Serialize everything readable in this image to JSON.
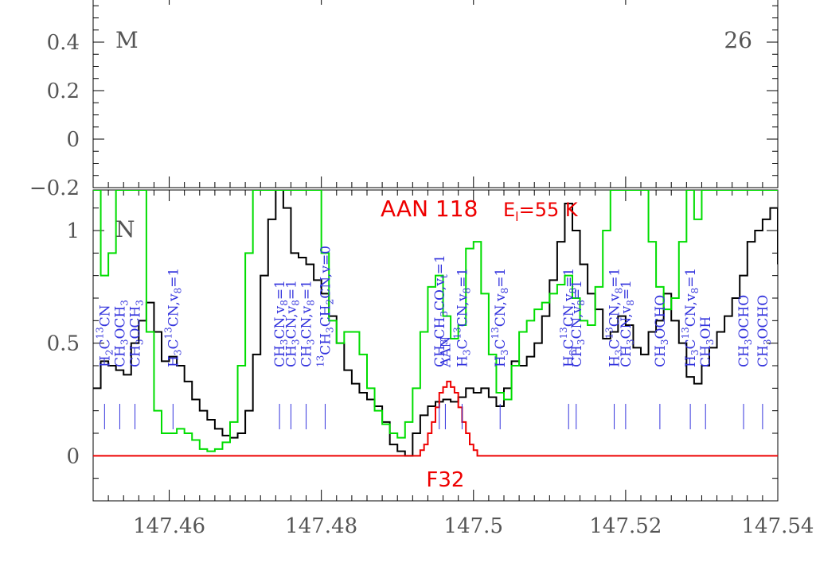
{
  "chart_data": [
    {
      "type": "line",
      "panel": "top",
      "label_left": "M",
      "label_right": "26",
      "ylim": [
        -0.2,
        0.6
      ],
      "y_ticks": [
        -0.2,
        0,
        0.2,
        0.4
      ],
      "y_tick_labels": [
        "−0.2",
        "0",
        "0.2",
        "0.4"
      ],
      "xlim": [
        147.45,
        147.54
      ],
      "series": []
    },
    {
      "type": "line",
      "panel": "bottom",
      "label_left": "N",
      "xlim": [
        147.45,
        147.54
      ],
      "ylim": [
        -0.2,
        1.18
      ],
      "x_ticks": [
        147.46,
        147.48,
        147.5,
        147.52,
        147.54
      ],
      "x_tick_labels": [
        "147.46",
        "147.48",
        "147.5",
        "147.52",
        "147.54"
      ],
      "y_ticks": [
        0,
        0.5,
        1
      ],
      "y_tick_labels": [
        "0",
        "0.5",
        "1"
      ],
      "colors": {
        "observed": "#000000",
        "full_model": "#00dd00",
        "species_model": "#ee0000",
        "labels": "#3333dd"
      },
      "annotation_title": "AAN  118",
      "annotation_energy": "E",
      "annotation_energy_sub": "l",
      "annotation_energy_value": "=55 K",
      "annotation_bottom": "F32",
      "series": [
        {
          "role": "observed",
          "x": [
            147.45,
            147.451,
            147.452,
            147.453,
            147.454,
            147.455,
            147.456,
            147.457,
            147.458,
            147.459,
            147.46,
            147.461,
            147.462,
            147.463,
            147.464,
            147.465,
            147.466,
            147.467,
            147.468,
            147.469,
            147.47,
            147.471,
            147.472,
            147.473,
            147.474,
            147.475,
            147.476,
            147.477,
            147.478,
            147.479,
            147.48,
            147.481,
            147.482,
            147.483,
            147.484,
            147.485,
            147.486,
            147.487,
            147.488,
            147.489,
            147.49,
            147.491,
            147.492,
            147.493,
            147.494,
            147.495,
            147.496,
            147.497,
            147.498,
            147.499,
            147.5,
            147.501,
            147.502,
            147.503,
            147.504,
            147.505,
            147.506,
            147.507,
            147.508,
            147.509,
            147.51,
            147.511,
            147.512,
            147.513,
            147.514,
            147.515,
            147.516,
            147.517,
            147.518,
            147.519,
            147.52,
            147.521,
            147.522,
            147.523,
            147.524,
            147.525,
            147.526,
            147.527,
            147.528,
            147.529,
            147.53,
            147.531,
            147.532,
            147.533,
            147.534,
            147.535,
            147.536,
            147.537,
            147.538,
            147.539,
            147.54
          ],
          "y": [
            0.3,
            0.42,
            0.4,
            0.38,
            0.36,
            0.5,
            0.6,
            0.68,
            0.55,
            0.42,
            0.44,
            0.4,
            0.33,
            0.25,
            0.2,
            0.16,
            0.12,
            0.09,
            0.08,
            0.1,
            0.2,
            0.45,
            0.8,
            1.05,
            1.22,
            1.1,
            0.9,
            0.88,
            0.85,
            0.78,
            0.72,
            0.62,
            0.5,
            0.38,
            0.32,
            0.28,
            0.25,
            0.22,
            0.15,
            0.05,
            0.02,
            0.0,
            0.1,
            0.18,
            0.22,
            0.24,
            0.25,
            0.24,
            0.26,
            0.3,
            0.28,
            0.3,
            0.26,
            0.22,
            0.3,
            0.42,
            0.4,
            0.44,
            0.5,
            0.62,
            0.78,
            0.95,
            1.12,
            1.0,
            0.85,
            0.72,
            0.65,
            0.52,
            0.55,
            0.62,
            0.58,
            0.48,
            0.45,
            0.55,
            0.6,
            0.72,
            0.6,
            0.5,
            0.35,
            0.32,
            0.4,
            0.48,
            0.55,
            0.62,
            0.7,
            0.8,
            0.95,
            1.0,
            1.05,
            1.1,
            0.85
          ]
        },
        {
          "role": "full_model",
          "x": [
            147.45,
            147.451,
            147.452,
            147.453,
            147.454,
            147.455,
            147.456,
            147.457,
            147.458,
            147.459,
            147.46,
            147.461,
            147.462,
            147.463,
            147.464,
            147.465,
            147.466,
            147.467,
            147.468,
            147.469,
            147.47,
            147.471,
            147.472,
            147.473,
            147.474,
            147.475,
            147.476,
            147.477,
            147.478,
            147.479,
            147.48,
            147.481,
            147.482,
            147.483,
            147.484,
            147.485,
            147.486,
            147.487,
            147.488,
            147.489,
            147.49,
            147.491,
            147.492,
            147.493,
            147.494,
            147.495,
            147.496,
            147.497,
            147.498,
            147.499,
            147.5,
            147.501,
            147.502,
            147.503,
            147.504,
            147.505,
            147.506,
            147.507,
            147.508,
            147.509,
            147.51,
            147.511,
            147.512,
            147.513,
            147.514,
            147.515,
            147.516,
            147.517,
            147.518,
            147.519,
            147.52,
            147.521,
            147.522,
            147.523,
            147.524,
            147.525,
            147.526,
            147.527,
            147.528,
            147.529,
            147.53,
            147.531,
            147.532,
            147.533,
            147.534,
            147.535,
            147.536,
            147.537,
            147.538,
            147.539,
            147.54
          ],
          "y": [
            1.18,
            0.8,
            0.9,
            1.18,
            1.18,
            1.18,
            1.18,
            0.55,
            0.2,
            0.1,
            0.1,
            0.12,
            0.1,
            0.07,
            0.03,
            0.02,
            0.03,
            0.06,
            0.15,
            0.4,
            0.9,
            1.18,
            1.18,
            1.18,
            1.18,
            1.18,
            1.18,
            1.18,
            1.18,
            1.18,
            0.9,
            0.6,
            0.5,
            0.55,
            0.55,
            0.45,
            0.3,
            0.2,
            0.14,
            0.1,
            0.08,
            0.15,
            0.3,
            0.55,
            0.75,
            0.8,
            0.62,
            0.52,
            0.58,
            0.92,
            0.95,
            0.72,
            0.45,
            0.28,
            0.25,
            0.4,
            0.55,
            0.6,
            0.65,
            0.68,
            0.72,
            0.76,
            0.8,
            0.7,
            0.6,
            0.58,
            0.75,
            1.0,
            1.18,
            1.18,
            1.18,
            1.18,
            1.18,
            0.95,
            0.75,
            0.65,
            0.7,
            0.95,
            1.18,
            1.05,
            1.18,
            1.18,
            1.18,
            1.18,
            1.18,
            1.18,
            1.18,
            1.18,
            1.18,
            1.18,
            1.18
          ]
        },
        {
          "role": "species_model",
          "name": "AAN",
          "x": [
            147.45,
            147.4925,
            147.4935,
            147.4945,
            147.4955,
            147.4965,
            147.4975,
            147.4985,
            147.4995,
            147.5005,
            147.54
          ],
          "y": [
            0.0,
            0.0,
            0.05,
            0.15,
            0.28,
            0.33,
            0.28,
            0.15,
            0.05,
            0.0,
            0.0
          ]
        }
      ],
      "line_labels": [
        {
          "x": 147.4515,
          "text": "H",
          "sub": "2",
          "rest": "C",
          "sup": "13",
          "tail": "CN"
        },
        {
          "x": 147.4535,
          "text": "CH",
          "sub": "3",
          "rest": "OCH",
          "sub2": "3"
        },
        {
          "x": 147.4555,
          "text": "CH",
          "sub": "3",
          "rest": "OCH",
          "sub2": "3"
        },
        {
          "x": 147.4605,
          "text": "H",
          "sub": "3",
          "rest": "C",
          "sup": "13",
          "tail": "CN,v",
          "sub2": "8",
          "tail2": "=1"
        },
        {
          "x": 147.4745,
          "text": "CH",
          "sub": "3",
          "rest": "CN,v",
          "sub2": "8",
          "tail2": "=1"
        },
        {
          "x": 147.476,
          "text": "CH",
          "sub": "3",
          "rest": "CN,v",
          "sub2": "8",
          "tail2": "=1"
        },
        {
          "x": 147.478,
          "text": "CH",
          "sub": "3",
          "rest": "CN,v",
          "sub2": "8",
          "tail2": "=1"
        },
        {
          "x": 147.4805,
          "sup": "13",
          "text": "CH",
          "sub": "3",
          "rest": "CH",
          "sub2": "2",
          "tail2": "CN,v=0"
        },
        {
          "x": 147.4955,
          "text": "CH",
          "sub": "3",
          "rest": "CH",
          "sub2": "3",
          "tail2": "CO,v",
          "sub3": "t",
          "tail3": "=1"
        },
        {
          "x": 147.4963,
          "text": "AAN"
        },
        {
          "x": 147.4985,
          "text": "H",
          "sub": "3",
          "rest": "C",
          "sup": "13",
          "tail": "CN,v",
          "sub2": "8",
          "tail2": "=1"
        },
        {
          "x": 147.5035,
          "text": "H",
          "sub": "3",
          "rest": "C",
          "sup": "13",
          "tail": "CN,v",
          "sub2": "8",
          "tail2": "=1"
        },
        {
          "x": 147.5125,
          "text": "H",
          "sub": "3",
          "rest": "C",
          "sup": "13",
          "tail": "CN,v",
          "sub2": "8",
          "tail2": "=1"
        },
        {
          "x": 147.5135,
          "text": "CH",
          "sub": "3",
          "rest": "CN,v",
          "sub2": "8",
          "tail2": "=1"
        },
        {
          "x": 147.5185,
          "text": "H",
          "sub": "3",
          "rest": "C",
          "sup": "13",
          "tail": "CN,v",
          "sub2": "8",
          "tail2": "=1"
        },
        {
          "x": 147.52,
          "text": "CH",
          "sub": "3",
          "rest": "CN,v",
          "sub2": "8",
          "tail2": "=1"
        },
        {
          "x": 147.5245,
          "text": "CH",
          "sub": "3",
          "rest": "OCHO"
        },
        {
          "x": 147.5285,
          "text": "H",
          "sub": "3",
          "rest": "C",
          "sup": "13",
          "tail": "CN,v",
          "sub2": "8",
          "tail2": "=1"
        },
        {
          "x": 147.5305,
          "text": "CH",
          "sub": "3",
          "rest": "OH"
        },
        {
          "x": 147.5355,
          "text": "CH",
          "sub": "3",
          "rest": "OCHO"
        },
        {
          "x": 147.538,
          "text": "CH",
          "sub": "3",
          "rest": "OCHO"
        }
      ]
    }
  ]
}
